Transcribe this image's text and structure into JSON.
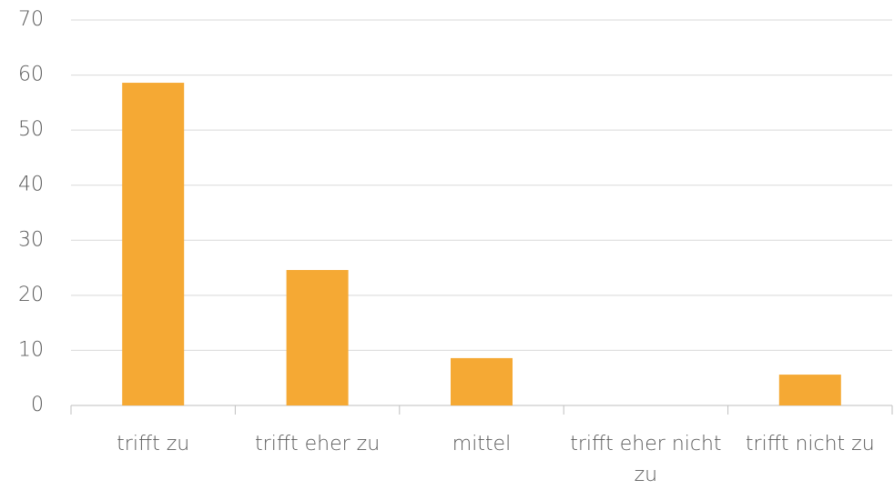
{
  "chart_data": {
    "type": "bar",
    "categories": [
      "trifft zu",
      "trifft eher zu",
      "mittel",
      "trifft eher nicht zu",
      "trifft nicht zu"
    ],
    "values": [
      58.6,
      24.6,
      8.6,
      0,
      5.6
    ],
    "color": "#f5a934",
    "ylim": [
      0,
      70
    ],
    "yticks": [
      0,
      10,
      20,
      30,
      40,
      50,
      60,
      70
    ],
    "grid": true
  }
}
